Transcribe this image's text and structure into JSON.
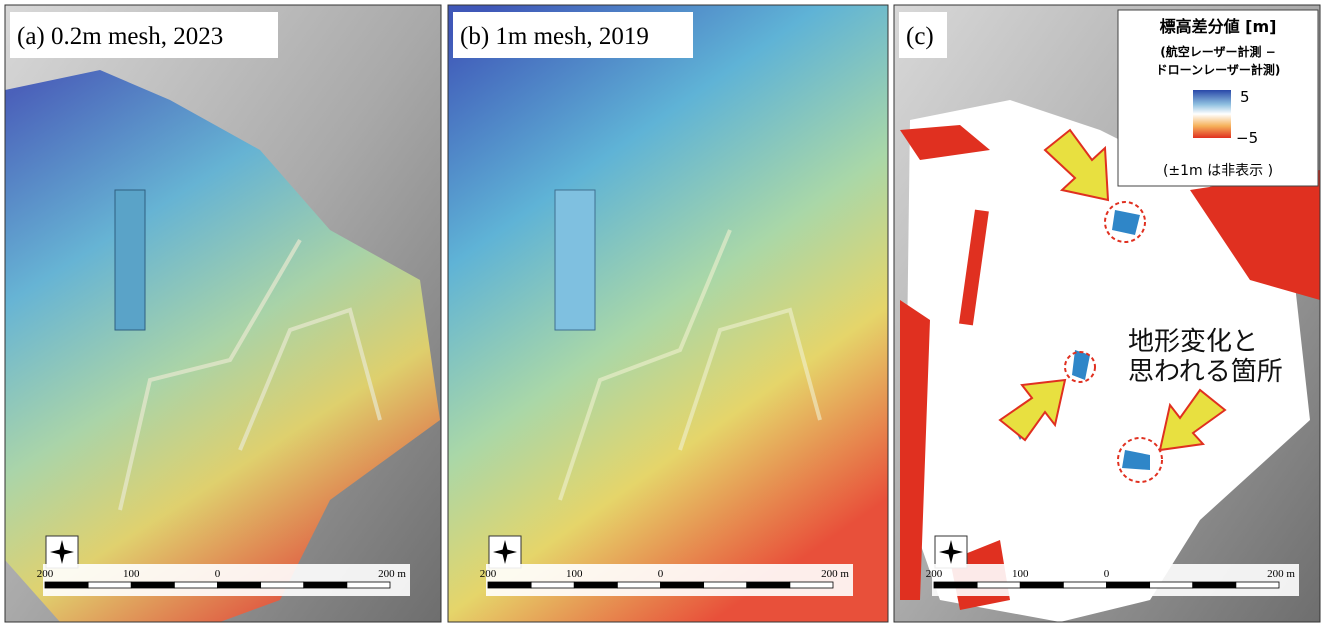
{
  "panels": [
    {
      "label": "(a) 0.2m mesh, 2023",
      "scale": [
        "200",
        "100",
        "0",
        "200 m"
      ]
    },
    {
      "label": "(b) 1m mesh, 2019",
      "scale": [
        "200",
        "100",
        "0",
        "200 m"
      ]
    },
    {
      "label": "(c)",
      "scale": [
        "200",
        "100",
        "0",
        "200 m"
      ]
    }
  ],
  "legend": {
    "title": "標高差分値 [m]",
    "subtitle": [
      "(航空レーザー計測 −",
      "ドローンレーザー計測)"
    ],
    "max": "5",
    "min": "−5",
    "note": "(±1m は非表示 )"
  },
  "annotation": [
    "地形変化と",
    "思われる箇所"
  ]
}
